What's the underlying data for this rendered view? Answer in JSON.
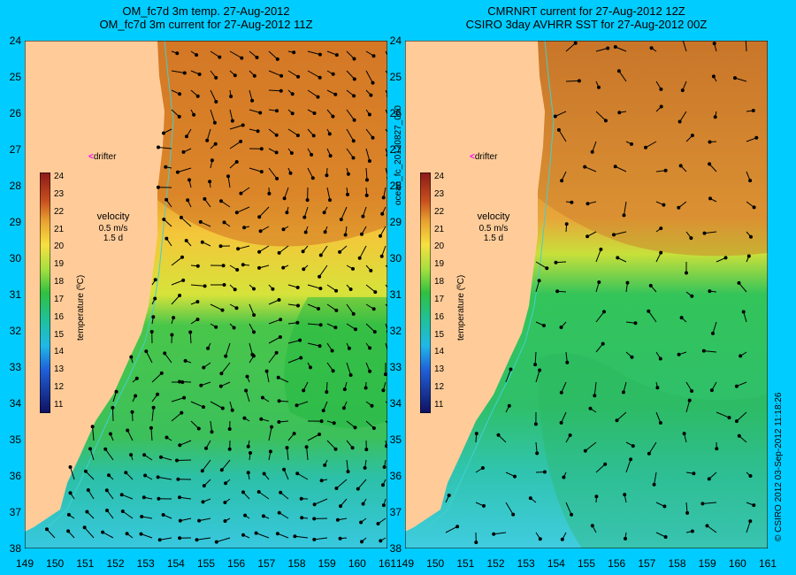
{
  "panels": [
    {
      "title_line1": "OM_fc7d 3m temp. 27-Aug-2012",
      "title_line2": "OM_fc7d 3m current for 27-Aug-2012 11Z"
    },
    {
      "title_line1": "CMRNRT current for 27-Aug-2012 12Z",
      "title_line2": "CSIRO 3day AVHRR SST for 27-Aug-2012 00Z"
    }
  ],
  "lat_ticks": [
    "24",
    "25",
    "26",
    "27",
    "28",
    "29",
    "30",
    "31",
    "32",
    "33",
    "34",
    "35",
    "36",
    "37",
    "38"
  ],
  "lon_ticks": [
    "149",
    "150",
    "151",
    "152",
    "153",
    "154",
    "155",
    "156",
    "157",
    "158",
    "159",
    "160",
    "161"
  ],
  "colorbar": {
    "ticks": [
      "24",
      "23",
      "22",
      "21",
      "20",
      "19",
      "18",
      "17",
      "16",
      "15",
      "14",
      "13",
      "12",
      "11"
    ],
    "title": "temperature (ºC)"
  },
  "velocity": {
    "label": "velocity",
    "scale": "0.5 m/s",
    "duration": "1.5 d"
  },
  "drifter": {
    "arrow": "<",
    "label": "drifter"
  },
  "side_left": "ocean_fc_20120827_000",
  "side_right": "© CSIRO 2012   03-Sep-2012 11:18:26",
  "colors": {
    "background": "#00ccff",
    "land": "#ffcc99",
    "drifter": "#ff00ff"
  }
}
